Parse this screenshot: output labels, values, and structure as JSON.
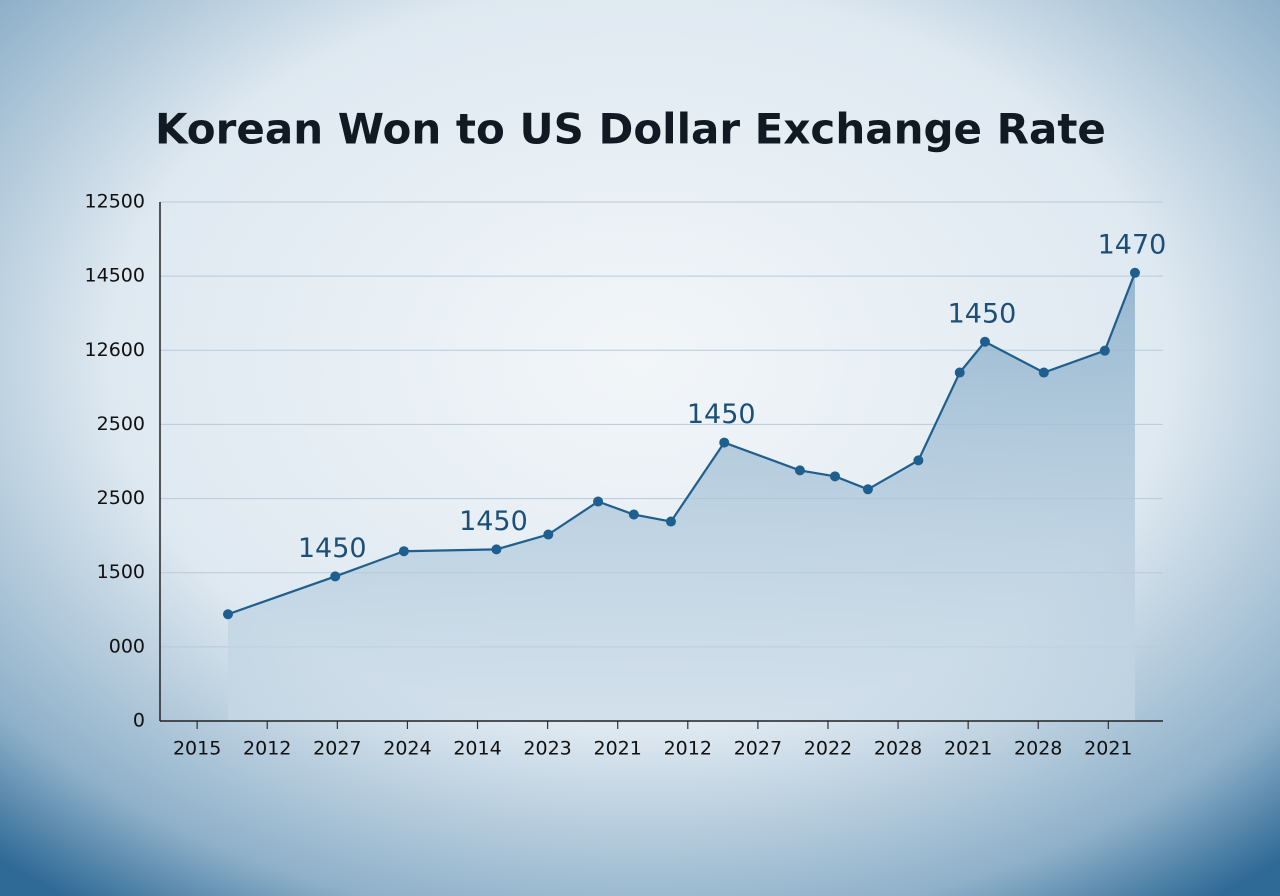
{
  "chart_data": {
    "type": "line",
    "title": "Korean Won to US Dollar Exchange Rate",
    "color": "#1f5f8f",
    "area_color": "#7fa6c4",
    "grid": true,
    "xticks": [
      {
        "value": 0,
        "label": "2015"
      },
      {
        "value": 1,
        "label": "2012"
      },
      {
        "value": 2,
        "label": "2027"
      },
      {
        "value": 3,
        "label": "2024"
      },
      {
        "value": 4,
        "label": "2014"
      },
      {
        "value": 5,
        "label": "2023"
      },
      {
        "value": 6,
        "label": "2021"
      },
      {
        "value": 7,
        "label": "2012"
      },
      {
        "value": 8,
        "label": "2027"
      },
      {
        "value": 9,
        "label": "2022"
      },
      {
        "value": 10,
        "label": "2028"
      },
      {
        "value": 11,
        "label": "2021"
      },
      {
        "value": 12,
        "label": "2028"
      },
      {
        "value": 13,
        "label": "2021"
      }
    ],
    "xlim": [
      -0.53,
      13.78
    ],
    "yticks": [
      0,
      {
        "value": 200,
        "label": "000"
      },
      {
        "value": 400,
        "label": "1500"
      },
      {
        "value": 600,
        "label": "2500"
      },
      {
        "value": 800,
        "label": "2500"
      },
      {
        "value": 1000,
        "label": "12600"
      },
      {
        "value": 1200,
        "label": "14500"
      },
      {
        "value": 1400,
        "label": "12500"
      }
    ],
    "ylim": [
      0,
      1400
    ],
    "x": [
      0.44,
      1.97,
      2.95,
      4.27,
      5.01,
      5.72,
      6.23,
      6.76,
      7.52,
      8.6,
      9.1,
      9.57,
      10.29,
      10.88,
      11.24,
      12.08,
      12.95,
      13.38
    ],
    "values": [
      288,
      390,
      458,
      463,
      503,
      592,
      557,
      538,
      751,
      676,
      660,
      625,
      703,
      940,
      1023,
      940,
      999,
      1209
    ],
    "annotations": [
      null,
      "1450",
      null,
      "1450",
      null,
      null,
      null,
      null,
      "1450",
      null,
      null,
      null,
      null,
      null,
      "1450",
      null,
      null,
      "1470"
    ]
  }
}
